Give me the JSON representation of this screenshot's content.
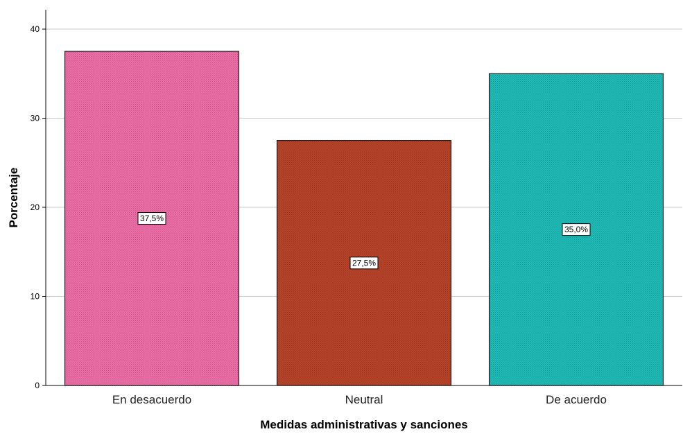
{
  "chart_data": {
    "type": "bar",
    "categories": [
      "En desacuerdo",
      "Neutral",
      "De acuerdo"
    ],
    "values": [
      37.5,
      27.5,
      35.0
    ],
    "data_labels": [
      "37,5%",
      "27,5%",
      "35,0%"
    ],
    "colors": [
      "#f06ea8",
      "#b9442a",
      "#1fbcb8"
    ],
    "xlabel": "Medidas administrativas y sanciones",
    "ylabel": "Porcentaje",
    "ylim": [
      0,
      40
    ],
    "yticks": [
      "0",
      "10",
      "20",
      "30",
      "40"
    ],
    "grid": true,
    "legend": "none"
  }
}
